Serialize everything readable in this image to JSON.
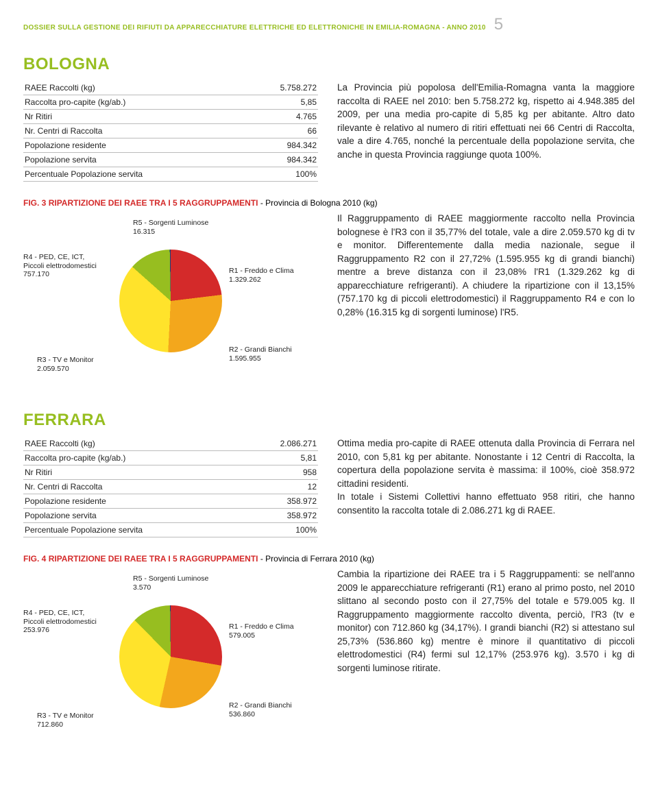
{
  "header": {
    "title": "DOSSIER SULLA GESTIONE DEI RIFIUTI DA APPARECCHIATURE ELETTRICHE ED ELETTRONICHE IN EMILIA-ROMAGNA - ANNO 2010",
    "page_num": "5"
  },
  "accent_color": "#97be20",
  "figtitle_color": "#d42a2a",
  "bologna": {
    "title": "BOLOGNA",
    "rows": [
      [
        "RAEE Raccolti (kg)",
        "5.758.272"
      ],
      [
        "Raccolta pro-capite (kg/ab.)",
        "5,85"
      ],
      [
        "Nr Ritiri",
        "4.765"
      ],
      [
        "Nr. Centri di Raccolta",
        "66"
      ],
      [
        "Popolazione residente",
        "984.342"
      ],
      [
        "Popolazione servita",
        "984.342"
      ],
      [
        "Percentuale Popolazione servita",
        "100%"
      ]
    ],
    "text": "La Provincia più popolosa dell'Emilia-Romagna vanta la maggiore raccolta di RAEE nel 2010: ben 5.758.272 kg, rispetto ai 4.948.385 del 2009, per una media pro-capite di 5,85 kg per abitante. Altro dato rilevante è relativo al numero di ritiri effettuati nei 66 Centri di Raccolta, vale a dire 4.765, nonché la percentuale della popolazione servita, che anche in questa Provincia raggiunge quota 100%."
  },
  "fig3": {
    "prefix": "FIG. 3 ",
    "title": "RIPARTIZIONE DEI RAEE TRA I 5 RAGGRUPPAMENTI",
    "suffix": " - Provincia di Bologna 2010 (kg)",
    "chart": {
      "type": "pie",
      "background_color": "#ffffff",
      "slices": [
        {
          "label": "R1 - Freddo e Clima",
          "value": "1.329.262",
          "pct": 23.08,
          "color": "#d42a2a"
        },
        {
          "label": "R2 - Grandi Bianchi",
          "value": "1.595.955",
          "pct": 27.72,
          "color": "#f3a71c"
        },
        {
          "label": "R3 - TV e Monitor",
          "value": "2.059.570",
          "pct": 35.77,
          "color": "#ffe32b"
        },
        {
          "label": "R4 - PED, CE, ICT,\nPiccoli elettrodomestici",
          "value": "757.170",
          "pct": 13.15,
          "color": "#97be20"
        },
        {
          "label": "R5 - Sorgenti Luminose",
          "value": "16.315",
          "pct": 0.28,
          "color": "#1b3b7a"
        }
      ],
      "label_fontsize": 10.5
    },
    "text": "Il Raggruppamento di RAEE maggiormente raccolto nella Provincia bolognese è l'R3 con il 35,77% del totale, vale a dire 2.059.570 kg di tv e monitor. Differentemente dalla media nazionale, segue il Raggruppamento R2 con il 27,72% (1.595.955 kg di grandi bianchi) mentre a breve distanza con il 23,08% l'R1 (1.329.262 kg di apparecchiature refrigeranti). A chiudere la ripartizione con il 13,15% (757.170 kg di piccoli elettrodomestici) il Raggruppamento R4 e con lo 0,28% (16.315 kg di sorgenti luminose) l'R5."
  },
  "ferrara": {
    "title": "FERRARA",
    "rows": [
      [
        "RAEE Raccolti (kg)",
        "2.086.271"
      ],
      [
        "Raccolta pro-capite (kg/ab.)",
        "5,81"
      ],
      [
        "Nr Ritiri",
        "958"
      ],
      [
        "Nr. Centri di Raccolta",
        "12"
      ],
      [
        "Popolazione residente",
        "358.972"
      ],
      [
        "Popolazione servita",
        "358.972"
      ],
      [
        "Percentuale Popolazione servita",
        "100%"
      ]
    ],
    "text": "Ottima media pro-capite di RAEE ottenuta dalla Provincia di Ferrara nel 2010, con 5,81 kg per abitante. Nonostante i 12 Centri di Raccolta, la copertura della popolazione servita è massima: il 100%, cioè 358.972 cittadini residenti.\nIn totale i Sistemi Collettivi hanno effettuato 958 ritiri, che hanno consentito la raccolta totale di 2.086.271 kg di RAEE."
  },
  "fig4": {
    "prefix": "FIG. 4 ",
    "title": "RIPARTIZIONE DEI RAEE TRA I 5 RAGGRUPPAMENTI",
    "suffix": " - Provincia di Ferrara 2010 (kg)",
    "chart": {
      "type": "pie",
      "background_color": "#ffffff",
      "slices": [
        {
          "label": "R1 - Freddo e Clima",
          "value": "579.005",
          "pct": 27.75,
          "color": "#d42a2a"
        },
        {
          "label": "R2 - Grandi Bianchi",
          "value": "536.860",
          "pct": 25.73,
          "color": "#f3a71c"
        },
        {
          "label": "R3 - TV e Monitor",
          "value": "712.860",
          "pct": 34.17,
          "color": "#ffe32b"
        },
        {
          "label": "R4 - PED, CE, ICT,\nPiccoli elettrodomestici",
          "value": "253.976",
          "pct": 12.17,
          "color": "#97be20"
        },
        {
          "label": "R5 - Sorgenti Luminose",
          "value": "3.570",
          "pct": 0.17,
          "color": "#1b3b7a"
        }
      ],
      "label_fontsize": 10.5
    },
    "text": "Cambia la ripartizione dei RAEE tra i 5 Raggruppamenti: se nell'anno 2009 le apparecchiature refrigeranti (R1) erano al primo posto, nel 2010 slittano al secondo posto con il 27,75% del totale e 579.005 kg. Il Raggruppamento maggiormente raccolto diventa, perciò, l'R3 (tv e monitor) con 712.860 kg (34,17%). I grandi bianchi (R2) si attestano sul 25,73% (536.860 kg) mentre è minore il quantitativo di piccoli elettrodomestici (R4) fermi sul 12,17% (253.976 kg). 3.570 i kg di sorgenti luminose ritirate."
  }
}
